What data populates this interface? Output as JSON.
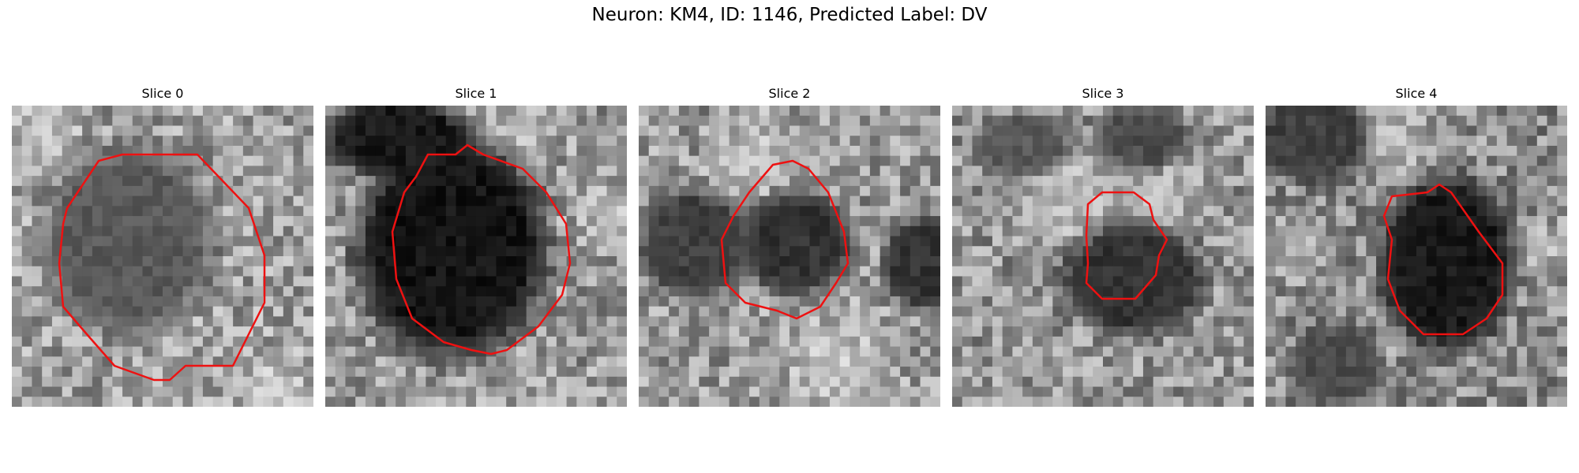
{
  "figure": {
    "title": "Neuron: KM4, ID: 1146, Predicted Label: DV",
    "contour_color": "#ee1111"
  },
  "panels": [
    {
      "title": "Slice 0"
    },
    {
      "title": "Slice 1"
    },
    {
      "title": "Slice 2"
    },
    {
      "title": "Slice 3"
    },
    {
      "title": "Slice 4"
    }
  ]
}
